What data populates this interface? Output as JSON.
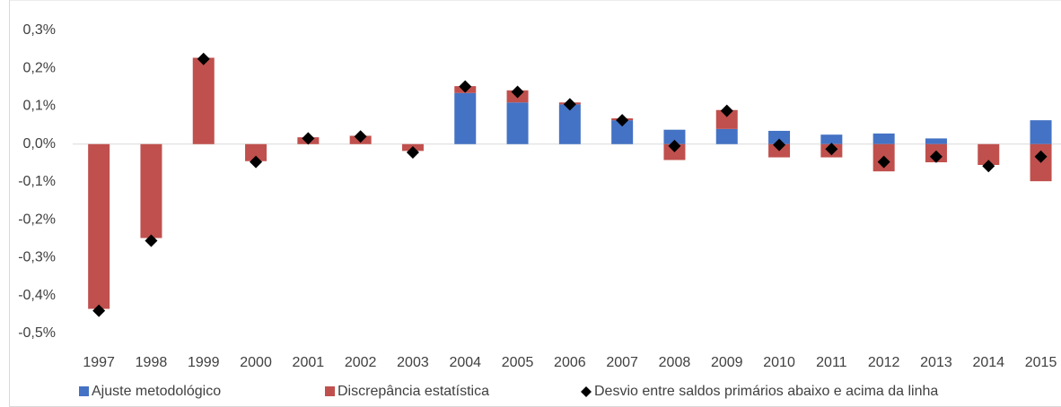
{
  "chart_data": {
    "type": "bar",
    "stacked": true,
    "categories": [
      "1997",
      "1998",
      "1999",
      "2000",
      "2001",
      "2002",
      "2003",
      "2004",
      "2005",
      "2006",
      "2007",
      "2008",
      "2009",
      "2010",
      "2011",
      "2012",
      "2013",
      "2014",
      "2015"
    ],
    "series": [
      {
        "name": "Ajuste metodológico",
        "type": "bar",
        "color": "#4472c4",
        "values": [
          0,
          0,
          0,
          0,
          0,
          0,
          0,
          0.135,
          0.11,
          0.105,
          0.063,
          0.038,
          0.04,
          0.035,
          0.025,
          0.028,
          0.015,
          0,
          0.063
        ]
      },
      {
        "name": "Discrepância estatística",
        "type": "bar",
        "color": "#c0504d",
        "values": [
          -0.435,
          -0.248,
          0.228,
          -0.045,
          0.018,
          0.022,
          -0.018,
          0.018,
          0.032,
          0.005,
          0.005,
          -0.042,
          0.05,
          -0.035,
          -0.035,
          -0.072,
          -0.048,
          -0.055,
          -0.098
        ]
      },
      {
        "name": "Desvio entre saldos primários abaixo e acima da linha",
        "type": "scatter",
        "color": "#000000",
        "values": [
          -0.44,
          -0.255,
          0.225,
          -0.047,
          0.015,
          0.02,
          -0.022,
          0.152,
          0.138,
          0.105,
          0.063,
          -0.005,
          0.088,
          -0.002,
          -0.013,
          -0.047,
          -0.033,
          -0.058,
          -0.033
        ]
      }
    ],
    "ylim": [
      -0.5,
      0.3
    ],
    "yticks": [
      {
        "value": 0.3,
        "label": "0,3%"
      },
      {
        "value": 0.2,
        "label": "0,2%"
      },
      {
        "value": 0.1,
        "label": "0,1%"
      },
      {
        "value": 0,
        "label": "0,0%"
      },
      {
        "value": -0.1,
        "label": "-0,1%"
      },
      {
        "value": -0.2,
        "label": "-0,2%"
      },
      {
        "value": -0.3,
        "label": "-0,3%"
      },
      {
        "value": -0.4,
        "label": "-0,4%"
      },
      {
        "value": -0.5,
        "label": "-0,5%"
      }
    ],
    "grid": false,
    "legend": "bottom"
  }
}
